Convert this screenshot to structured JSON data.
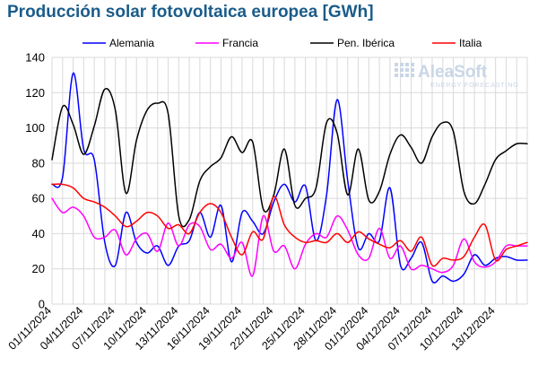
{
  "chart_data": {
    "type": "line",
    "title": "Producción solar fotovoltaica europea [GWh]",
    "xlabel": "",
    "ylabel": "",
    "ylim": [
      0,
      140
    ],
    "yticks": [
      0,
      20,
      40,
      60,
      80,
      100,
      120,
      140
    ],
    "x_tick_labels": [
      "01/11/2024",
      "04/11/2024",
      "07/11/2024",
      "10/11/2024",
      "13/11/2024",
      "16/11/2024",
      "19/11/2024",
      "22/11/2024",
      "25/11/2024",
      "28/11/2024",
      "01/12/2024",
      "04/12/2024",
      "07/12/2024",
      "10/12/2024",
      "13/12/2024"
    ],
    "x": [
      "01/11/2024",
      "02/11/2024",
      "03/11/2024",
      "04/11/2024",
      "05/11/2024",
      "06/11/2024",
      "07/11/2024",
      "08/11/2024",
      "09/11/2024",
      "10/11/2024",
      "11/11/2024",
      "12/11/2024",
      "13/11/2024",
      "14/11/2024",
      "15/11/2024",
      "16/11/2024",
      "17/11/2024",
      "18/11/2024",
      "19/11/2024",
      "20/11/2024",
      "21/11/2024",
      "22/11/2024",
      "23/11/2024",
      "24/11/2024",
      "25/11/2024",
      "26/11/2024",
      "27/11/2024",
      "28/11/2024",
      "29/11/2024",
      "30/11/2024",
      "01/12/2024",
      "02/12/2024",
      "03/12/2024",
      "04/12/2024",
      "05/12/2024",
      "06/12/2024",
      "07/12/2024",
      "08/12/2024",
      "09/12/2024",
      "10/12/2024",
      "11/12/2024",
      "12/12/2024",
      "13/12/2024",
      "14/12/2024",
      "15/12/2024",
      "16/12/2024"
    ],
    "legend_position": "top",
    "grid": true,
    "series": [
      {
        "name": "Alemania",
        "color": "#0000ff",
        "values": [
          68,
          72,
          131,
          88,
          82,
          35,
          22,
          52,
          35,
          29,
          33,
          22,
          33,
          36,
          52,
          38,
          56,
          24,
          52,
          47,
          40,
          58,
          68,
          58,
          67,
          36,
          62,
          116,
          70,
          32,
          40,
          36,
          66,
          22,
          26,
          35,
          13,
          16,
          13,
          17,
          28,
          22,
          26,
          27,
          25,
          25
        ]
      },
      {
        "name": "Francia",
        "color": "#ff00ff",
        "values": [
          60,
          52,
          55,
          50,
          38,
          38,
          42,
          28,
          37,
          40,
          30,
          46,
          33,
          45,
          44,
          31,
          34,
          26,
          35,
          16,
          50,
          30,
          33,
          20,
          34,
          40,
          38,
          50,
          42,
          28,
          26,
          43,
          26,
          33,
          20,
          22,
          20,
          18,
          22,
          37,
          24,
          21,
          24,
          33,
          33,
          33
        ]
      },
      {
        "name": "Pen. Ibérica",
        "color": "#000000",
        "values": [
          82,
          112,
          102,
          85,
          101,
          122,
          110,
          63,
          93,
          110,
          114,
          108,
          50,
          48,
          70,
          78,
          83,
          95,
          86,
          92,
          54,
          62,
          88,
          56,
          60,
          66,
          103,
          97,
          62,
          88,
          59,
          64,
          85,
          96,
          89,
          80,
          95,
          103,
          98,
          64,
          57,
          68,
          82,
          87,
          91,
          91
        ]
      },
      {
        "name": "Italia",
        "color": "#ff0000",
        "values": [
          68,
          68,
          66,
          60,
          58,
          55,
          50,
          44,
          47,
          52,
          50,
          43,
          45,
          40,
          52,
          57,
          52,
          38,
          28,
          41,
          37,
          61,
          45,
          38,
          35,
          36,
          35,
          40,
          35,
          41,
          37,
          34,
          32,
          36,
          30,
          38,
          22,
          26,
          25,
          27,
          38,
          45,
          25,
          31,
          33,
          35
        ]
      }
    ]
  },
  "logo": {
    "name": "AleaSoft",
    "tagline": "ENERGY FORECASTING"
  }
}
